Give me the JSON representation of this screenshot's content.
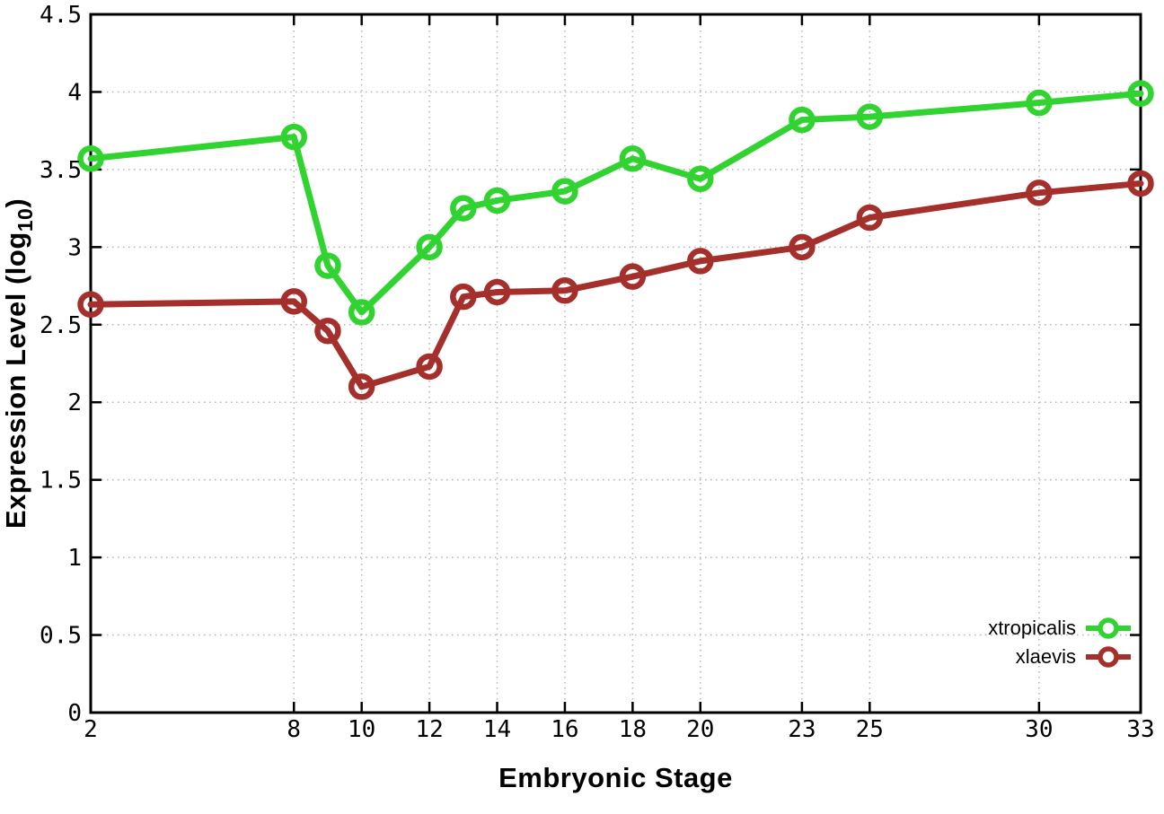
{
  "chart_data": {
    "type": "line",
    "title": "",
    "xlabel": "Embryonic Stage",
    "ylabel": {
      "main": "Expression Level (log",
      "sub": "10",
      "close": ")"
    },
    "x": [
      2,
      8,
      9,
      10,
      12,
      13,
      14,
      16,
      18,
      20,
      23,
      25,
      30,
      33
    ],
    "series": [
      {
        "name": "xtropicalis",
        "color": "#30d330",
        "values": [
          3.57,
          3.71,
          2.88,
          2.58,
          3.0,
          3.25,
          3.3,
          3.36,
          3.57,
          3.44,
          3.82,
          3.84,
          3.93,
          3.99
        ]
      },
      {
        "name": "xlaevis",
        "color": "#a52f2b",
        "values": [
          2.63,
          2.65,
          2.46,
          2.1,
          2.23,
          2.68,
          2.71,
          2.72,
          2.81,
          2.91,
          3.0,
          3.19,
          3.35,
          3.41
        ]
      }
    ],
    "xticks": {
      "values": [
        2,
        8,
        10,
        12,
        14,
        16,
        18,
        20,
        23,
        25,
        30,
        33
      ],
      "labels": [
        "2",
        "8",
        "10",
        "12",
        "14",
        "16",
        "18",
        "20",
        "23",
        "25",
        "30",
        "33"
      ]
    },
    "yticks": {
      "values": [
        0,
        0.5,
        1,
        1.5,
        2,
        2.5,
        3,
        3.5,
        4,
        4.5
      ],
      "labels": [
        "0",
        "0.5",
        "1",
        "1.5",
        "2",
        "2.5",
        "3",
        "3.5",
        "4",
        "4.5"
      ]
    },
    "xlim": [
      2,
      33
    ],
    "ylim": [
      0,
      4.5
    ],
    "grid": true,
    "marker": "open-circle",
    "legend_position": "inside bottom-right",
    "colors": {
      "axis": "#000000",
      "grid": "#b4b4b4",
      "background": "#ffffff",
      "text": "#000000"
    }
  }
}
